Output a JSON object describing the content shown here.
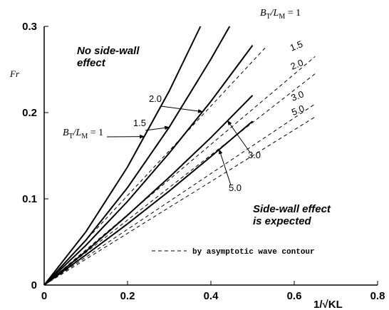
{
  "chart_data": {
    "type": "line",
    "xlim": [
      0,
      0.8
    ],
    "ylim": [
      0,
      0.3
    ],
    "xticks": [
      0,
      0.2,
      0.4,
      0.6,
      0.8
    ],
    "yticks": [
      0,
      0.1,
      0.2,
      0.3
    ],
    "ylabel": "Fr",
    "xlabel": "1/√KL",
    "ratio_label": [
      "B",
      "T",
      "/L",
      "M",
      " = 1"
    ],
    "annotations": [
      [
        "No side-wall",
        "effect"
      ],
      [
        "Side-wall effect",
        "is expected"
      ]
    ],
    "legend": {
      "label": "by asymptotic wave contour",
      "style": "dashed"
    },
    "color": "#000000",
    "series": [
      {
        "style": "solid",
        "x": [
          0,
          0.1,
          0.2,
          0.3,
          0.375
        ],
        "values": [
          0,
          0.0617,
          0.137,
          0.225,
          0.3
        ]
      },
      {
        "label": "1.5",
        "style": "solid",
        "x": [
          0,
          0.1,
          0.2,
          0.3,
          0.4,
          0.445
        ],
        "values": [
          0,
          0.052,
          0.113,
          0.183,
          0.262,
          0.3
        ]
      },
      {
        "label": "2.0",
        "style": "solid",
        "x": [
          0,
          0.1,
          0.2,
          0.3,
          0.4,
          0.5
        ],
        "values": [
          0,
          0.046,
          0.097,
          0.153,
          0.213,
          0.278
        ]
      },
      {
        "label": "3.0",
        "style": "solid",
        "x": [
          0,
          0.1,
          0.2,
          0.3,
          0.4,
          0.5
        ],
        "values": [
          0,
          0.039,
          0.081,
          0.125,
          0.171,
          0.22
        ]
      },
      {
        "label": "5.0",
        "style": "solid",
        "x": [
          0,
          0.1,
          0.2,
          0.3,
          0.4,
          0.5
        ],
        "values": [
          0,
          0.035,
          0.071,
          0.109,
          0.149,
          0.19
        ]
      },
      {
        "style": "dashed",
        "x": [
          0,
          0.53
        ],
        "values": [
          0,
          0.275
        ]
      },
      {
        "label": "1.5",
        "style": "dashed",
        "x": [
          0,
          0.65
        ],
        "values": [
          0,
          0.265
        ]
      },
      {
        "label": "2.0",
        "style": "dashed",
        "x": [
          0,
          0.65
        ],
        "values": [
          0,
          0.245
        ]
      },
      {
        "label": "3.0",
        "style": "dashed",
        "x": [
          0,
          0.65
        ],
        "values": [
          0,
          0.21
        ]
      },
      {
        "label": "5.0",
        "style": "dashed",
        "x": [
          0,
          0.65
        ],
        "values": [
          0,
          0.195
        ]
      }
    ]
  }
}
